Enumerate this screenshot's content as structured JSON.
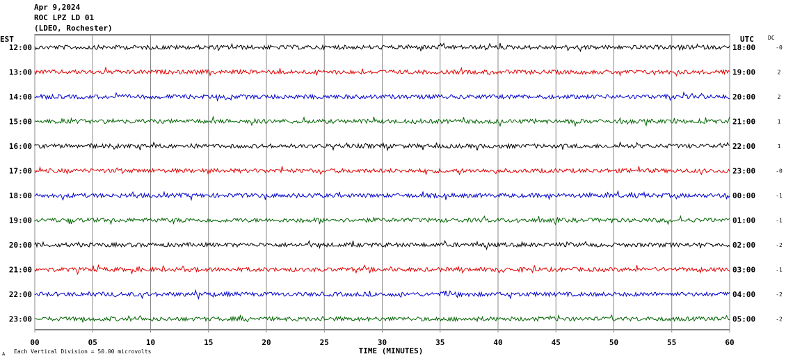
{
  "header": {
    "date": "Apr 9,2024",
    "station": "ROC LPZ LD 01",
    "network": "(LDEO, Rochester)"
  },
  "left_axis_label": "EST",
  "right_axis_label": "UTC",
  "dc_label": "DC",
  "footer_note": "Each Vertical Division =   50.00 microvolts",
  "footer_mark": "A",
  "chart_data": {
    "type": "line",
    "title": "Apr 9,2024 ROC LPZ LD 01 (LDEO, Rochester)",
    "xlabel": "TIME (MINUTES)",
    "xlim": [
      0,
      60
    ],
    "x_ticks": [
      "00",
      "05",
      "10",
      "15",
      "20",
      "25",
      "30",
      "35",
      "40",
      "45",
      "50",
      "55",
      "60"
    ],
    "grid": "vertical lines every 5 minutes",
    "colors": [
      "#000000",
      "#e00000",
      "#0000cc",
      "#006400"
    ],
    "traces": [
      {
        "est": "12:00",
        "utc": "18:00",
        "dc": "-0",
        "color": "#000000"
      },
      {
        "est": "13:00",
        "utc": "19:00",
        "dc": "2",
        "color": "#e00000"
      },
      {
        "est": "14:00",
        "utc": "20:00",
        "dc": "2",
        "color": "#0000cc"
      },
      {
        "est": "15:00",
        "utc": "21:00",
        "dc": "1",
        "color": "#006400"
      },
      {
        "est": "16:00",
        "utc": "22:00",
        "dc": "1",
        "color": "#000000"
      },
      {
        "est": "17:00",
        "utc": "23:00",
        "dc": "-0",
        "color": "#e00000"
      },
      {
        "est": "18:00",
        "utc": "00:00",
        "dc": "-1",
        "color": "#0000cc"
      },
      {
        "est": "19:00",
        "utc": "01:00",
        "dc": "-1",
        "color": "#006400"
      },
      {
        "est": "20:00",
        "utc": "02:00",
        "dc": "-2",
        "color": "#000000"
      },
      {
        "est": "21:00",
        "utc": "03:00",
        "dc": "-1",
        "color": "#e00000"
      },
      {
        "est": "22:00",
        "utc": "04:00",
        "dc": "-2",
        "color": "#0000cc"
      },
      {
        "est": "23:00",
        "utc": "05:00",
        "dc": "-2",
        "color": "#006400"
      }
    ]
  }
}
